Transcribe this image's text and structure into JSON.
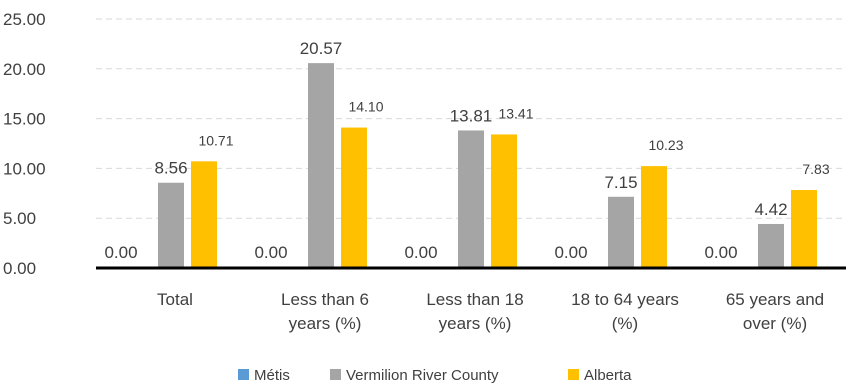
{
  "chart_data": {
    "type": "bar",
    "categories": [
      [
        "Total"
      ],
      [
        "Less than 6",
        "years (%)"
      ],
      [
        "Less than 18",
        "years (%)"
      ],
      [
        "18 to 64 years",
        "(%)"
      ],
      [
        "65 years and",
        "over (%)"
      ]
    ],
    "series": [
      {
        "name": "Métis",
        "color": "#5B9BD5",
        "values": [
          0.0,
          0.0,
          0.0,
          0.0,
          0.0
        ],
        "labels": [
          "0.00",
          "0.00",
          "0.00",
          "0.00",
          "0.00"
        ]
      },
      {
        "name": "Vermilion River County",
        "color": "#A5A5A5",
        "values": [
          8.56,
          20.57,
          13.81,
          7.15,
          4.42
        ],
        "labels": [
          "8.56",
          "20.57",
          "13.81",
          "7.15",
          "4.42"
        ]
      },
      {
        "name": "Alberta",
        "color": "#FFC000",
        "values": [
          10.71,
          14.1,
          13.41,
          10.23,
          7.83
        ],
        "labels": [
          "10.71",
          "14.10",
          "13.41",
          "10.23",
          "7.83"
        ]
      }
    ],
    "yticks": [
      "0.00",
      "5.00",
      "10.00",
      "15.00",
      "20.00",
      "25.00"
    ],
    "ylim": [
      0,
      25
    ],
    "grid": true,
    "legend_position": "bottom"
  }
}
